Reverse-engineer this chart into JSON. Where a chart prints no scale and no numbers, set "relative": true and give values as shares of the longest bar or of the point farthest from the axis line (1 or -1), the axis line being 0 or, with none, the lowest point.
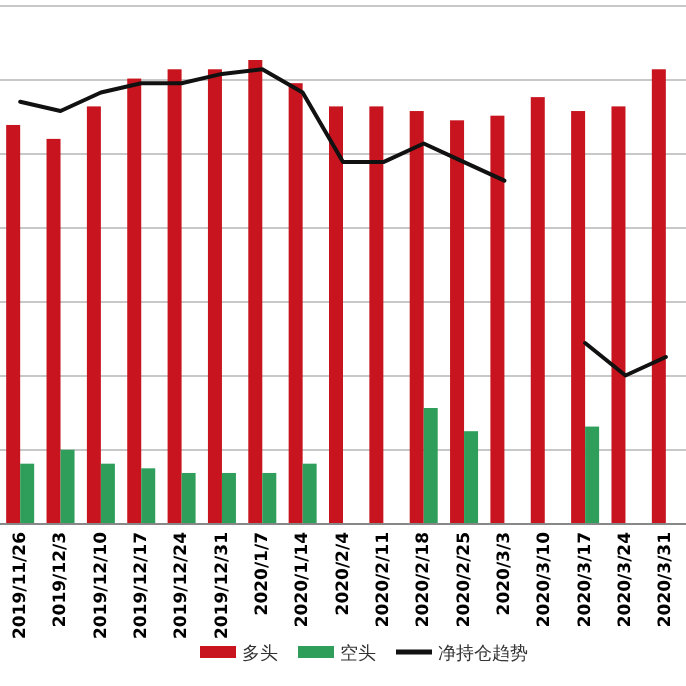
{
  "chart_data": {
    "type": "bar",
    "relative": true,
    "grid": "y",
    "legend": "bottom",
    "categories": [
      "2019/11/26",
      "2019/12/3",
      "2019/12/10",
      "2019/12/17",
      "2019/12/24",
      "2019/12/31",
      "2020/1/7",
      "2020/1/14",
      "2020/2/4",
      "2020/2/11",
      "2020/2/18",
      "2020/2/25",
      "2020/3/3",
      "2020/3/10",
      "2020/3/17",
      "2020/3/24",
      "2020/3/31"
    ],
    "series": [
      {
        "name": "多头",
        "color": "#c8141e",
        "values": [
          0.86,
          0.83,
          0.9,
          0.96,
          0.98,
          0.98,
          1,
          0.95,
          0.9,
          0.9,
          0.89,
          0.87,
          0.88,
          0.92,
          0.89,
          0.9,
          0.98
        ]
      },
      {
        "name": "空头",
        "color": "#2e9e5a",
        "values": [
          0.13,
          0.16,
          0.13,
          0.12,
          0.11,
          0.11,
          0.11,
          0.13,
          null,
          null,
          0.25,
          0.2,
          null,
          null,
          0.21,
          null,
          null
        ]
      },
      {
        "name": "净持仓趋势",
        "type": "line",
        "color": "#111111",
        "values": [
          0.91,
          0.89,
          0.93,
          0.95,
          0.95,
          0.97,
          0.98,
          0.93,
          0.78,
          0.78,
          0.82,
          0.78,
          0.74,
          null,
          0.39,
          0.32,
          0.36
        ]
      }
    ]
  }
}
